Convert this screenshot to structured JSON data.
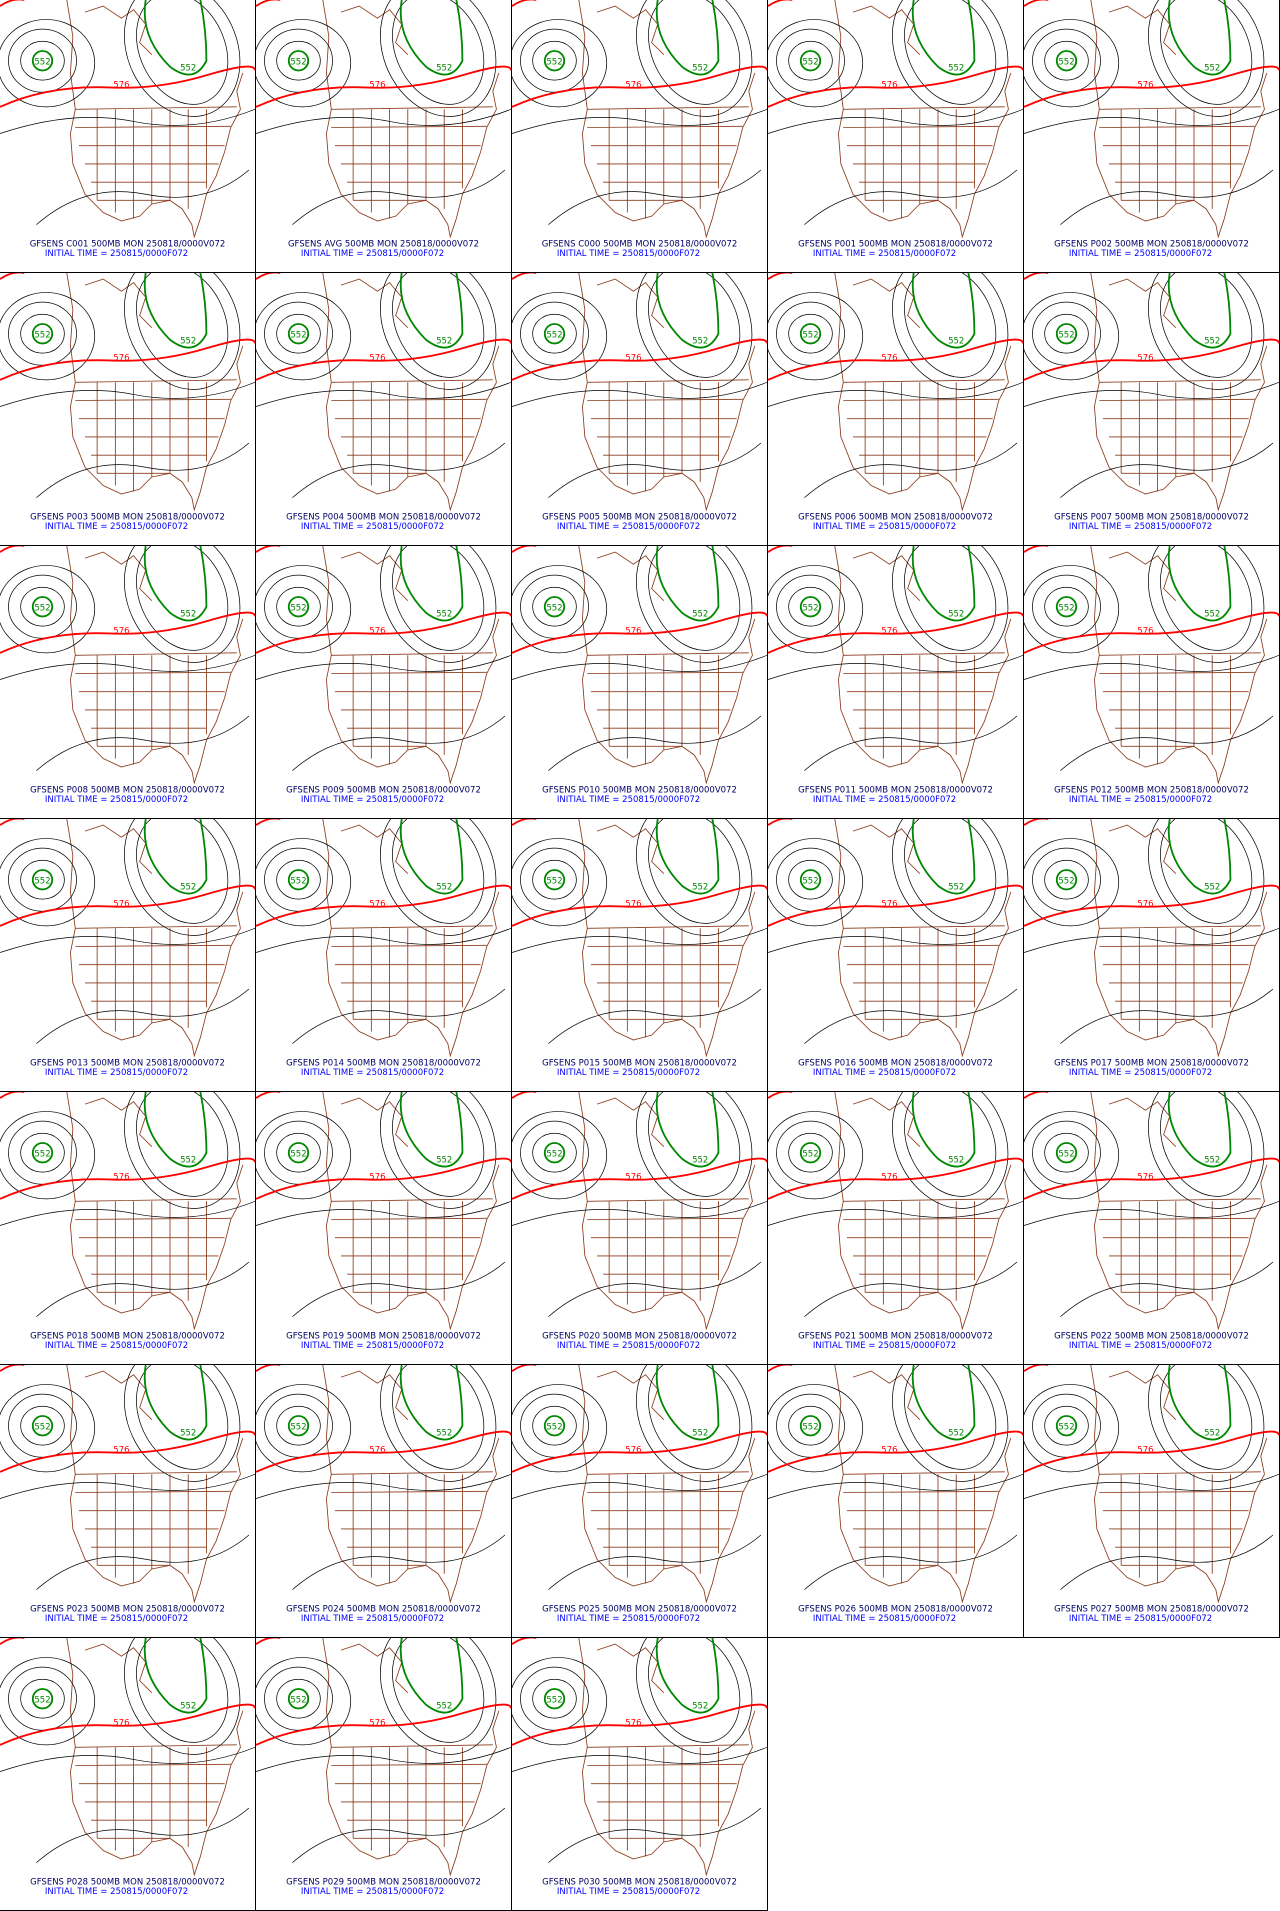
{
  "panels": [
    {
      "title": "GFSENS C001 500MB MON 250818/0000V072",
      "subtitle": "INITIAL TIME = 250815/0000F072",
      "contour_labels": [
        "552",
        "552",
        "576"
      ]
    },
    {
      "title": "GFSENS AVG 500MB MON 250818/0000V072",
      "subtitle": "INITIAL TIME = 250815/0000F072",
      "contour_labels": [
        "552",
        "552",
        "576"
      ]
    },
    {
      "title": "GFSENS C000 500MB MON 250818/0000V072",
      "subtitle": "INITIAL TIME = 250815/0000F072",
      "contour_labels": [
        "552",
        "552",
        "576"
      ]
    },
    {
      "title": "GFSENS P001 500MB MON 250818/0000V072",
      "subtitle": "INITIAL TIME = 250815/0000F072",
      "contour_labels": [
        "552",
        "552",
        "576"
      ]
    },
    {
      "title": "GFSENS P002 500MB MON 250818/0000V072",
      "subtitle": "INITIAL TIME = 250815/0000F072",
      "contour_labels": [
        "552",
        "552",
        "576"
      ]
    },
    {
      "title": "GFSENS P003 500MB MON 250818/0000V072",
      "subtitle": "INITIAL TIME = 250815/0000F072",
      "contour_labels": [
        "552",
        "552",
        "576"
      ]
    },
    {
      "title": "GFSENS P004 500MB MON 250818/0000V072",
      "subtitle": "INITIAL TIME = 250815/0000F072",
      "contour_labels": [
        "552",
        "552",
        "576"
      ]
    },
    {
      "title": "GFSENS P005 500MB MON 250818/0000V072",
      "subtitle": "INITIAL TIME = 250815/0000F072",
      "contour_labels": [
        "552",
        "552",
        "576"
      ]
    },
    {
      "title": "GFSENS P006 500MB MON 250818/0000V072",
      "subtitle": "INITIAL TIME = 250815/0000F072",
      "contour_labels": [
        "552",
        "552",
        "576"
      ]
    },
    {
      "title": "GFSENS P007 500MB MON 250818/0000V072",
      "subtitle": "INITIAL TIME = 250815/0000F072",
      "contour_labels": [
        "552",
        "552",
        "576"
      ]
    },
    {
      "title": "GFSENS P008 500MB MON 250818/0000V072",
      "subtitle": "INITIAL TIME = 250815/0000F072",
      "contour_labels": [
        "552",
        "552",
        "576"
      ]
    },
    {
      "title": "GFSENS P009 500MB MON 250818/0000V072",
      "subtitle": "INITIAL TIME = 250815/0000F072",
      "contour_labels": [
        "552",
        "552",
        "576"
      ]
    },
    {
      "title": "GFSENS P010 500MB MON 250818/0000V072",
      "subtitle": "INITIAL TIME = 250815/0000F072",
      "contour_labels": [
        "552",
        "552",
        "576"
      ]
    },
    {
      "title": "GFSENS P011 500MB MON 250818/0000V072",
      "subtitle": "INITIAL TIME = 250815/0000F072",
      "contour_labels": [
        "552",
        "552",
        "576"
      ]
    },
    {
      "title": "GFSENS P012 500MB MON 250818/0000V072",
      "subtitle": "INITIAL TIME = 250815/0000F072",
      "contour_labels": [
        "552",
        "552",
        "576"
      ]
    },
    {
      "title": "GFSENS P013 500MB MON 250818/0000V072",
      "subtitle": "INITIAL TIME = 250815/0000F072",
      "contour_labels": [
        "552",
        "552",
        "576"
      ]
    },
    {
      "title": "GFSENS P014 500MB MON 250818/0000V072",
      "subtitle": "INITIAL TIME = 250815/0000F072",
      "contour_labels": [
        "552",
        "552",
        "576"
      ]
    },
    {
      "title": "GFSENS P015 500MB MON 250818/0000V072",
      "subtitle": "INITIAL TIME = 250815/0000F072",
      "contour_labels": [
        "552",
        "552",
        "576"
      ]
    },
    {
      "title": "GFSENS P016 500MB MON 250818/0000V072",
      "subtitle": "INITIAL TIME = 250815/0000F072",
      "contour_labels": [
        "552",
        "552",
        "576"
      ]
    },
    {
      "title": "GFSENS P017 500MB MON 250818/0000V072",
      "subtitle": "INITIAL TIME = 250815/0000F072",
      "contour_labels": [
        "552",
        "552",
        "576"
      ]
    },
    {
      "title": "GFSENS P018 500MB MON 250818/0000V072",
      "subtitle": "INITIAL TIME = 250815/0000F072",
      "contour_labels": [
        "552",
        "552",
        "576"
      ]
    },
    {
      "title": "GFSENS P019 500MB MON 250818/0000V072",
      "subtitle": "INITIAL TIME = 250815/0000F072",
      "contour_labels": [
        "552",
        "552",
        "576"
      ]
    },
    {
      "title": "GFSENS P020 500MB MON 250818/0000V072",
      "subtitle": "INITIAL TIME = 250815/0000F072",
      "contour_labels": [
        "552",
        "552",
        "576"
      ]
    },
    {
      "title": "GFSENS P021 500MB MON 250818/0000V072",
      "subtitle": "INITIAL TIME = 250815/0000F072",
      "contour_labels": [
        "552",
        "552",
        "576"
      ]
    },
    {
      "title": "GFSENS P022 500MB MON 250818/0000V072",
      "subtitle": "INITIAL TIME = 250815/0000F072",
      "contour_labels": [
        "552",
        "552",
        "576"
      ]
    },
    {
      "title": "GFSENS P023 500MB MON 250818/0000V072",
      "subtitle": "INITIAL TIME = 250815/0000F072",
      "contour_labels": [
        "552",
        "552",
        "576"
      ]
    },
    {
      "title": "GFSENS P024 500MB MON 250818/0000V072",
      "subtitle": "INITIAL TIME = 250815/0000F072",
      "contour_labels": [
        "552",
        "552",
        "576"
      ]
    },
    {
      "title": "GFSENS P025 500MB MON 250818/0000V072",
      "subtitle": "INITIAL TIME = 250815/0000F072",
      "contour_labels": [
        "552",
        "552",
        "576"
      ]
    },
    {
      "title": "GFSENS P026 500MB MON 250818/0000V072",
      "subtitle": "INITIAL TIME = 250815/0000F072",
      "contour_labels": [
        "552",
        "552",
        "576"
      ]
    },
    {
      "title": "GFSENS P027 500MB MON 250818/0000V072",
      "subtitle": "INITIAL TIME = 250815/0000F072",
      "contour_labels": [
        "552",
        "552",
        "576"
      ]
    },
    {
      "title": "GFSENS P028 500MB MON 250818/0000V072",
      "subtitle": "INITIAL TIME = 250815/0000F072",
      "contour_labels": [
        "552",
        "552",
        "576"
      ]
    },
    {
      "title": "GFSENS P029 500MB MON 250818/0000V072",
      "subtitle": "INITIAL TIME = 250815/0000F072",
      "contour_labels": [
        "552",
        "552",
        "576"
      ]
    },
    {
      "title": "GFSENS P030 500MB MON 250818/0000V072",
      "subtitle": "INITIAL TIME = 250815/0000F072",
      "contour_labels": [
        "552",
        "552",
        "576"
      ]
    }
  ]
}
